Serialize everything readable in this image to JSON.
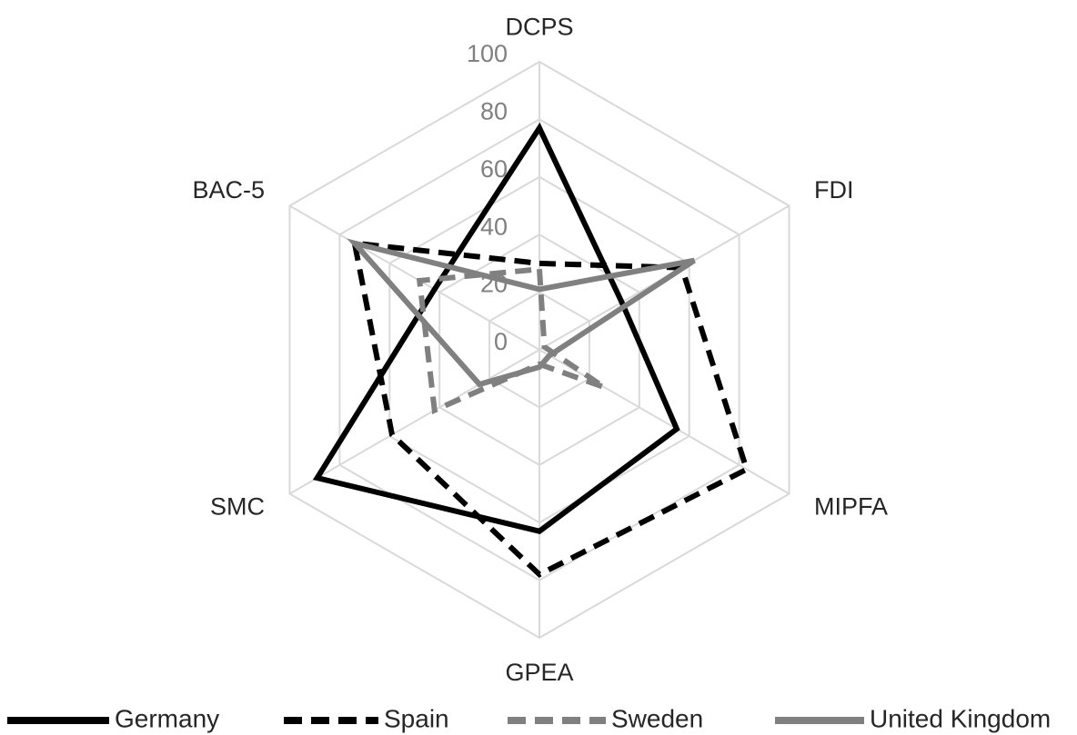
{
  "chart_data": {
    "type": "radar",
    "categories": [
      "DCPS",
      "FDI",
      "MIPFA",
      "GPEA",
      "SMC",
      "BAC-5"
    ],
    "series": [
      {
        "name": "Germany",
        "color": "#000000",
        "dashed": false,
        "values": [
          77,
          33,
          55,
          63,
          89,
          42
        ]
      },
      {
        "name": "Spain",
        "color": "#000000",
        "dashed": true,
        "values": [
          30,
          57,
          83,
          78,
          59,
          74
        ]
      },
      {
        "name": "Sweden",
        "color": "#808080",
        "dashed": true,
        "values": [
          28,
          2,
          26,
          5,
          42,
          48
        ]
      },
      {
        "name": "United Kingdom",
        "color": "#808080",
        "dashed": false,
        "values": [
          21,
          62,
          4,
          6,
          24,
          74
        ]
      }
    ],
    "rlim": [
      0,
      100
    ],
    "rticks": [
      0,
      20,
      40,
      60,
      80,
      100
    ],
    "grid": true,
    "legend": "bottom"
  }
}
